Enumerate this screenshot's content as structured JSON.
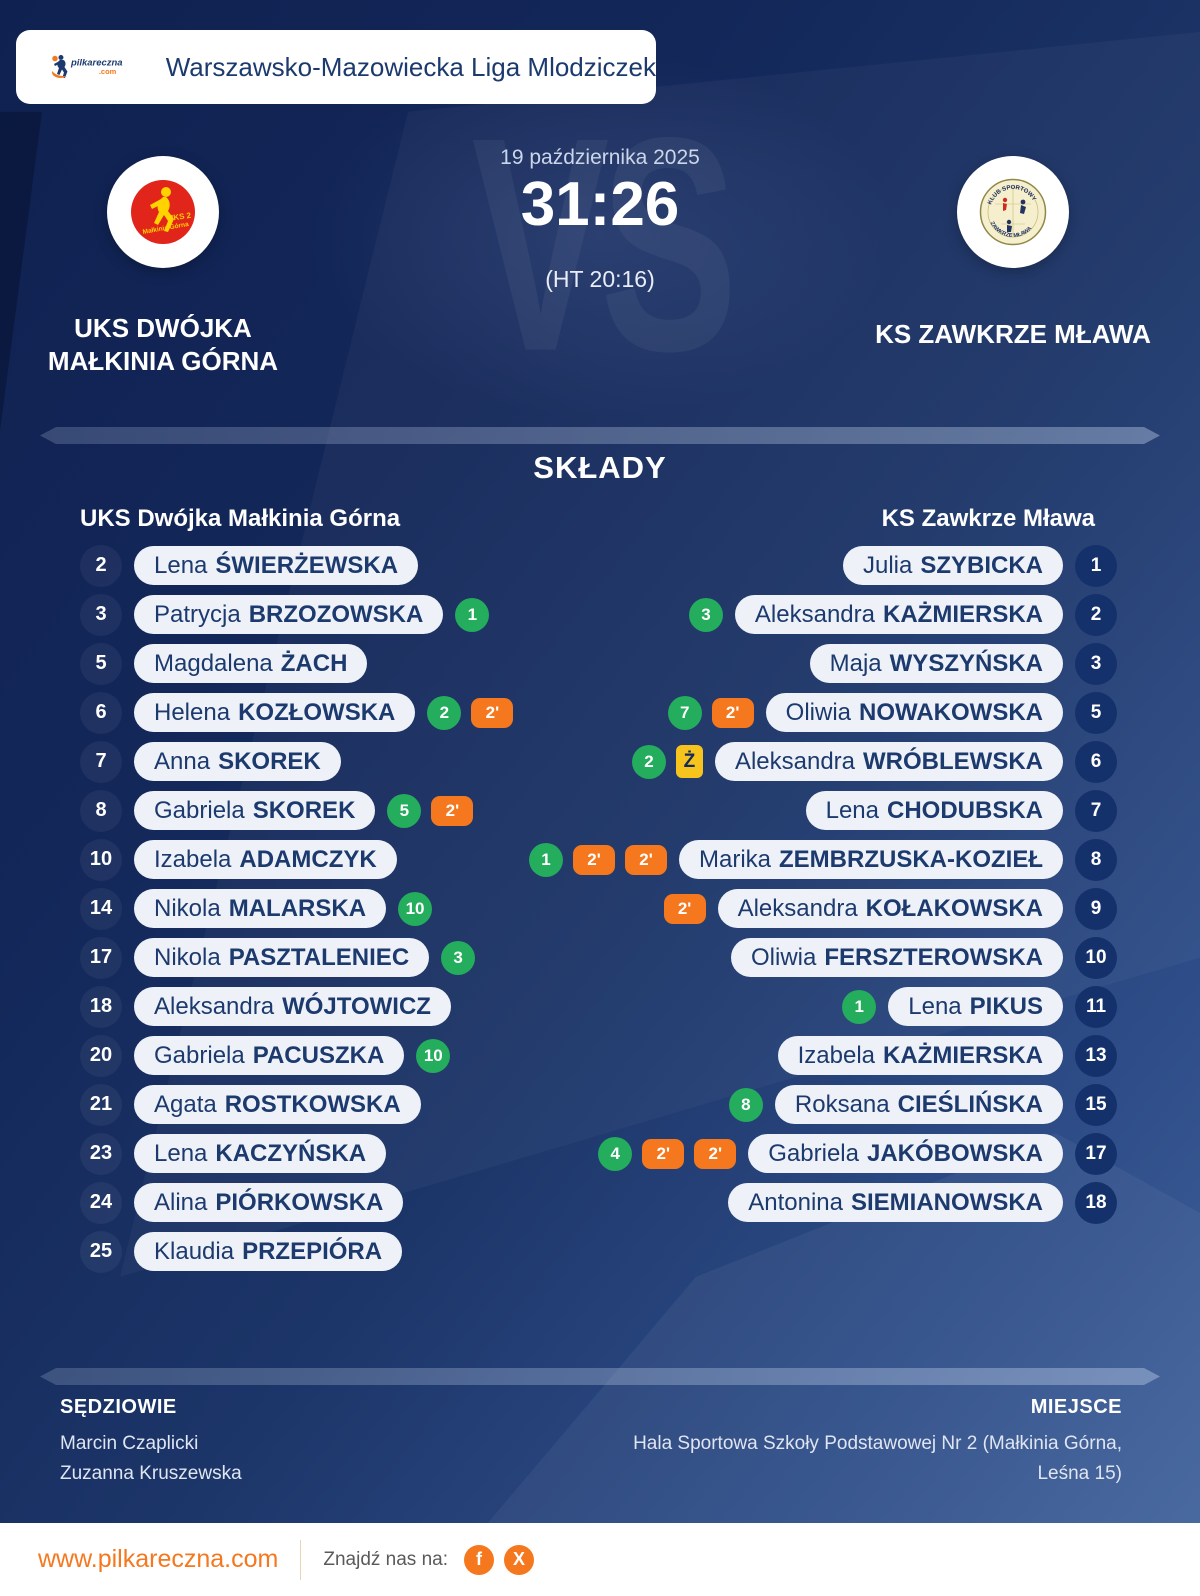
{
  "header": {
    "title": "Warszawsko-Mazowiecka Liga Mlodziczek",
    "logo": {
      "name": "pilkareczna",
      "tld": ".com"
    }
  },
  "match": {
    "date": "19 października 2025",
    "score": "31:26",
    "halftime": "(HT 20:16)",
    "vs_watermark": "VS",
    "home": {
      "name_lines": [
        "UKS DWÓJKA",
        "MAŁKINIA GÓRNA"
      ],
      "logo_line1": "UKS 2",
      "logo_line2": "Małkinia Górna"
    },
    "away": {
      "name": "KS ZAWKRZE MŁAWA",
      "logo_arc_top": "KLUB SPORTOWY",
      "logo_arc_bottom": "ZAWKRZE MŁAWA"
    }
  },
  "lineups": {
    "title": "SKŁADY",
    "home_header": "UKS Dwójka Małkinia Górna",
    "away_header": "KS Zawkrze Mława",
    "home_players": [
      {
        "number": "2",
        "first": "Lena",
        "last": "ŚWIERŻEWSKA"
      },
      {
        "number": "3",
        "first": "Patrycja",
        "last": "BRZOZOWSKA",
        "goals": "1"
      },
      {
        "number": "5",
        "first": "Magdalena",
        "last": "ŻACH"
      },
      {
        "number": "6",
        "first": "Helena",
        "last": "KOZŁOWSKA",
        "goals": "2",
        "susp": [
          "2'"
        ]
      },
      {
        "number": "7",
        "first": "Anna",
        "last": "SKOREK"
      },
      {
        "number": "8",
        "first": "Gabriela",
        "last": "SKOREK",
        "goals": "5",
        "susp": [
          "2'"
        ]
      },
      {
        "number": "10",
        "first": "Izabela",
        "last": "ADAMCZYK"
      },
      {
        "number": "14",
        "first": "Nikola",
        "last": "MALARSKA",
        "goals": "10"
      },
      {
        "number": "17",
        "first": "Nikola",
        "last": "PASZTALENIEC",
        "goals": "3"
      },
      {
        "number": "18",
        "first": "Aleksandra",
        "last": "WÓJTOWICZ"
      },
      {
        "number": "20",
        "first": "Gabriela",
        "last": "PACUSZKA",
        "goals": "10"
      },
      {
        "number": "21",
        "first": "Agata",
        "last": "ROSTKOWSKA"
      },
      {
        "number": "23",
        "first": "Lena",
        "last": "KACZYŃSKA"
      },
      {
        "number": "24",
        "first": "Alina",
        "last": "PIÓRKOWSKA"
      },
      {
        "number": "25",
        "first": "Klaudia",
        "last": "PRZEPIÓRA"
      }
    ],
    "away_players": [
      {
        "number": "1",
        "first": "Julia",
        "last": "SZYBICKA"
      },
      {
        "number": "2",
        "first": "Aleksandra",
        "last": "KAŻMIERSKA",
        "goals": "3"
      },
      {
        "number": "3",
        "first": "Maja",
        "last": "WYSZYŃSKA"
      },
      {
        "number": "5",
        "first": "Oliwia",
        "last": "NOWAKOWSKA",
        "goals": "7",
        "susp": [
          "2'"
        ]
      },
      {
        "number": "6",
        "first": "Aleksandra",
        "last": "WRÓBLEWSKA",
        "goals": "2",
        "yellow": "Ż"
      },
      {
        "number": "7",
        "first": "Lena",
        "last": "CHODUBSKA"
      },
      {
        "number": "8",
        "first": "Marika",
        "last": "ZEMBRZUSKA-KOZIEŁ",
        "goals": "1",
        "susp": [
          "2'",
          "2'"
        ]
      },
      {
        "number": "9",
        "first": "Aleksandra",
        "last": "KOŁAKOWSKA",
        "susp": [
          "2'"
        ]
      },
      {
        "number": "10",
        "first": "Oliwia",
        "last": "FERSZTEROWSKA"
      },
      {
        "number": "11",
        "first": "Lena",
        "last": "PIKUS",
        "goals": "1"
      },
      {
        "number": "13",
        "first": "Izabela",
        "last": "KAŻMIERSKA"
      },
      {
        "number": "15",
        "first": "Roksana",
        "last": "CIEŚLIŃSKA",
        "goals": "8"
      },
      {
        "number": "17",
        "first": "Gabriela",
        "last": "JAKÓBOWSKA",
        "goals": "4",
        "susp": [
          "2'",
          "2'"
        ]
      },
      {
        "number": "18",
        "first": "Antonina",
        "last": "SIEMIANOWSKA"
      }
    ]
  },
  "officials": {
    "referees_label": "SĘDZIOWIE",
    "referees": [
      "Marcin Czaplicki",
      "Zuzanna Kruszewska"
    ],
    "venue_label": "MIEJSCE",
    "venue_lines": [
      "Hala Sportowa Szkoły Podstawowej Nr 2 (Małkinia Górna,",
      "Leśna 15)"
    ]
  },
  "footer": {
    "url": "www.pilkareczna.com",
    "find_us": "Znajdź nas na:",
    "social": [
      {
        "name": "facebook",
        "glyph": "f"
      },
      {
        "name": "x",
        "glyph": "X"
      }
    ]
  },
  "colors": {
    "navy_text": "#1c3a6e",
    "goal_green": "#23ad5c",
    "suspension_orange": "#f5781e",
    "yellow_card": "#f6c41c",
    "accent_orange": "#f5781e"
  }
}
